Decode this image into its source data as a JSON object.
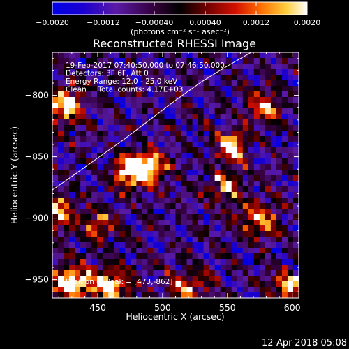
{
  "chart_data": {
    "type": "heatmap",
    "title": "Reconstructed RHESSI Image",
    "xlabel": "Heliocentric X (arcsec)",
    "ylabel": "Heliocentric Y (arcsec)",
    "xlim": [
      415,
      605
    ],
    "ylim": [
      -965,
      -765
    ],
    "x_ticks": [
      450,
      500,
      550,
      600
    ],
    "x_tick_labels": [
      "450",
      "500",
      "550",
      "600"
    ],
    "y_ticks": [
      -800,
      -850,
      -900,
      -950
    ],
    "y_tick_labels": [
      "−800",
      "−850",
      "−900",
      "−950"
    ],
    "colorbar": {
      "range": [
        -0.002,
        0.002
      ],
      "ticks": [
        -0.002,
        -0.0012,
        -0.0004,
        0.0004,
        0.0012,
        0.002
      ],
      "tick_labels": [
        "−0.0020",
        "−0.0012",
        "−0.00040",
        "0.00040",
        "0.0012",
        "0.0020"
      ],
      "unit_label": "(photons cm⁻² s⁻¹ asec⁻²)"
    },
    "info_lines": [
      "19-Feb-2017 07:40:50.000 to 07:46:50.000",
      "Detectors: 3F 6F, Att 0",
      "Energy Range: 12.0 - 25.0 keV",
      "Clean     Total counts: 4.17E+03"
    ],
    "peak_label": "Position of Peak = [473,-862]",
    "peak": [
      473,
      -862
    ],
    "limb": [
      [
        415,
        -877
      ],
      [
        430,
        -866
      ],
      [
        450,
        -851
      ],
      [
        470,
        -836
      ],
      [
        490,
        -820
      ],
      [
        510,
        -804
      ],
      [
        530,
        -789
      ],
      [
        550,
        -776
      ],
      [
        570,
        -764
      ]
    ],
    "hotspots": [
      {
        "x": 477,
        "y": -862,
        "amp": 1.0,
        "s": 9
      },
      {
        "x": 490,
        "y": -858,
        "amp": 0.75,
        "s": 8
      },
      {
        "x": 553,
        "y": -843,
        "amp": 0.85,
        "s": 8
      },
      {
        "x": 430,
        "y": -952,
        "amp": 0.9,
        "s": 10
      },
      {
        "x": 460,
        "y": -955,
        "amp": 0.8,
        "s": 10
      },
      {
        "x": 425,
        "y": -808,
        "amp": 0.8,
        "s": 10
      },
      {
        "x": 578,
        "y": -810,
        "amp": 0.6,
        "s": 9
      },
      {
        "x": 575,
        "y": -900,
        "amp": 0.6,
        "s": 10
      },
      {
        "x": 548,
        "y": -875,
        "amp": 0.55,
        "s": 9
      },
      {
        "x": 420,
        "y": -895,
        "amp": 0.7,
        "s": 9
      },
      {
        "x": 520,
        "y": -955,
        "amp": 0.55,
        "s": 10
      },
      {
        "x": 597,
        "y": -955,
        "amp": 0.75,
        "s": 8
      },
      {
        "x": 450,
        "y": -905,
        "amp": 0.5,
        "s": 9
      }
    ]
  },
  "footer": {
    "timestamp": "12-Apr-2018 05:08"
  }
}
